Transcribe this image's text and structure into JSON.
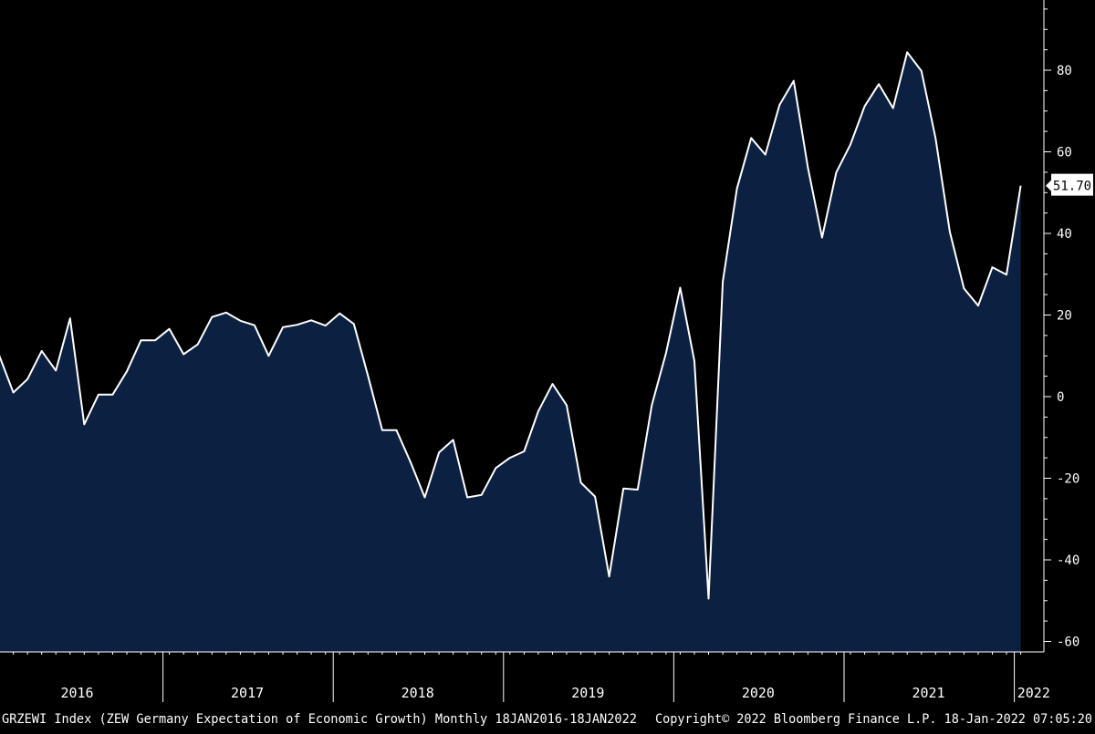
{
  "chart_data": {
    "type": "area",
    "title": "",
    "xlabel": "",
    "ylabel": "",
    "ylim": [
      -62,
      97
    ],
    "yticks": [
      -60,
      -40,
      -20,
      0,
      20,
      40,
      60,
      80
    ],
    "x_tick_labels": [
      "2016",
      "2017",
      "2018",
      "2019",
      "2020",
      "2021",
      "2022"
    ],
    "series": [
      {
        "x": [
          "2016-01",
          "2016-02",
          "2016-03",
          "2016-04",
          "2016-05",
          "2016-06",
          "2016-07",
          "2016-08",
          "2016-09",
          "2016-10",
          "2016-11",
          "2016-12",
          "2017-01",
          "2017-02",
          "2017-03",
          "2017-04",
          "2017-05",
          "2017-06",
          "2017-07",
          "2017-08",
          "2017-09",
          "2017-10",
          "2017-11",
          "2017-12",
          "2018-01",
          "2018-02",
          "2018-03",
          "2018-04",
          "2018-05",
          "2018-06",
          "2018-07",
          "2018-08",
          "2018-09",
          "2018-10",
          "2018-11",
          "2018-12",
          "2019-01",
          "2019-02",
          "2019-03",
          "2019-04",
          "2019-05",
          "2019-06",
          "2019-07",
          "2019-08",
          "2019-09",
          "2019-10",
          "2019-11",
          "2019-12",
          "2020-01",
          "2020-02",
          "2020-03",
          "2020-04",
          "2020-05",
          "2020-06",
          "2020-07",
          "2020-08",
          "2020-09",
          "2020-10",
          "2020-11",
          "2020-12",
          "2021-01",
          "2021-02",
          "2021-03",
          "2021-04",
          "2021-05",
          "2021-06",
          "2021-07",
          "2021-08",
          "2021-09",
          "2021-10",
          "2021-11",
          "2021-12",
          "2022-01"
        ],
        "values": [
          10.2,
          1.0,
          4.3,
          11.2,
          6.4,
          19.2,
          -6.8,
          0.5,
          0.5,
          6.2,
          13.8,
          13.8,
          16.6,
          10.4,
          12.8,
          19.5,
          20.6,
          18.6,
          17.5,
          10.0,
          17.0,
          17.6,
          18.7,
          17.4,
          20.4,
          17.8,
          5.1,
          -8.2,
          -8.2,
          -16.1,
          -24.7,
          -13.7,
          -10.6,
          -24.7,
          -24.1,
          -17.5,
          -15.0,
          -13.4,
          -3.6,
          3.1,
          -2.1,
          -21.1,
          -24.5,
          -44.1,
          -22.5,
          -22.8,
          -2.1,
          10.7,
          26.7,
          8.7,
          -49.5,
          28.2,
          51.0,
          63.4,
          59.3,
          71.5,
          77.4,
          56.1,
          39.0,
          55.0,
          61.8,
          71.2,
          76.6,
          70.7,
          84.4,
          79.8,
          63.3,
          40.4,
          26.5,
          22.3,
          31.7,
          29.9,
          51.7
        ]
      }
    ],
    "last_value_label": "51.70",
    "footer": {
      "left": "GRZEWI Index (ZEW Germany Expectation of Economic Growth)  Monthly 18JAN2016-18JAN2022",
      "right": "Copyright© 2022 Bloomberg Finance L.P.   18-Jan-2022 07:05:20"
    },
    "colors": {
      "background": "#000000",
      "area_fill": "#0c2141",
      "line": "#ffffff",
      "axis": "#ffffff"
    }
  }
}
